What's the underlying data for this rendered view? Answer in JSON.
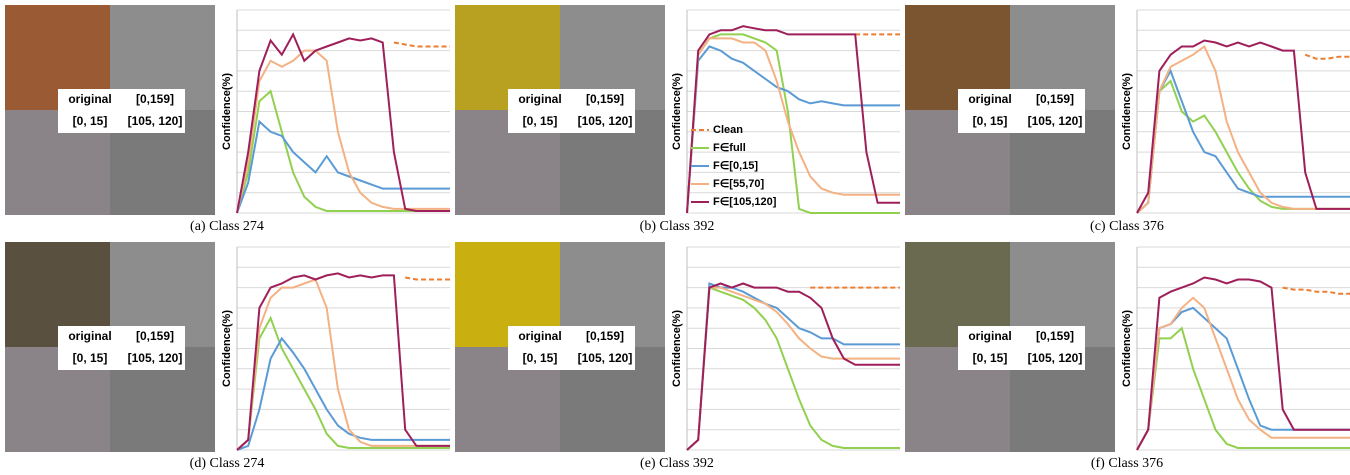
{
  "chart_data": [
    {
      "type": "line",
      "caption": "(a) Class 274",
      "image_labels": [
        "original",
        "[0,159]",
        "[0, 15]",
        "[105, 120]"
      ],
      "y_label": "Confidence(%)",
      "x": [
        0,
        1,
        2,
        3,
        4,
        5,
        6,
        7,
        8,
        9,
        10,
        11,
        12,
        13,
        14,
        15,
        16,
        17,
        18,
        19
      ],
      "xlim": [
        0,
        19
      ],
      "ylim": [
        0,
        100
      ],
      "yticks": [
        0,
        10,
        20,
        30,
        40,
        50,
        60,
        70,
        80,
        90,
        100
      ],
      "grid": true,
      "legend": false,
      "series": [
        {
          "color": "#ED7D31",
          "dashed": true,
          "values": [
            null,
            null,
            null,
            null,
            null,
            null,
            null,
            null,
            null,
            null,
            null,
            null,
            null,
            null,
            84,
            83,
            82,
            82,
            82,
            82
          ]
        },
        {
          "color": "#92D050",
          "values": [
            0,
            20,
            55,
            60,
            40,
            20,
            8,
            3,
            1,
            1,
            1,
            1,
            1,
            1,
            1,
            1,
            1,
            1,
            1,
            1
          ]
        },
        {
          "color": "#5B9BD5",
          "values": [
            0,
            15,
            45,
            40,
            38,
            30,
            25,
            20,
            28,
            20,
            18,
            16,
            14,
            12,
            12,
            12,
            12,
            12,
            12,
            12
          ]
        },
        {
          "color": "#F4B183",
          "values": [
            0,
            25,
            65,
            75,
            72,
            75,
            80,
            80,
            75,
            40,
            20,
            10,
            5,
            3,
            2,
            2,
            2,
            2,
            2,
            2
          ]
        },
        {
          "color": "#9E1F5A",
          "values": [
            0,
            30,
            70,
            85,
            78,
            88,
            75,
            80,
            82,
            84,
            86,
            85,
            86,
            84,
            30,
            2,
            1,
            1,
            1,
            1
          ]
        }
      ]
    },
    {
      "type": "line",
      "caption": "(b) Class 392",
      "image_labels": [
        "original",
        "[0,159]",
        "[0, 15]",
        "[105, 120]"
      ],
      "y_label": "Confidence(%)",
      "x": [
        0,
        1,
        2,
        3,
        4,
        5,
        6,
        7,
        8,
        9,
        10,
        11,
        12,
        13,
        14,
        15,
        16,
        17,
        18,
        19
      ],
      "xlim": [
        0,
        19
      ],
      "ylim": [
        0,
        100
      ],
      "yticks": [
        0,
        10,
        20,
        30,
        40,
        50,
        60,
        70,
        80,
        90,
        100
      ],
      "grid": true,
      "legend": true,
      "series": [
        {
          "name": "Clean",
          "color": "#ED7D31",
          "dashed": true,
          "values": [
            null,
            null,
            null,
            null,
            null,
            null,
            null,
            null,
            null,
            null,
            null,
            null,
            null,
            null,
            null,
            88,
            88,
            88,
            88,
            88
          ]
        },
        {
          "name": "F∈full",
          "color": "#92D050",
          "values": [
            0,
            78,
            86,
            88,
            88,
            88,
            86,
            84,
            80,
            50,
            2,
            0,
            0,
            0,
            0,
            0,
            0,
            0,
            0,
            0
          ]
        },
        {
          "name": "F∈[0,15]",
          "color": "#5B9BD5",
          "values": [
            0,
            75,
            82,
            80,
            76,
            74,
            70,
            66,
            62,
            60,
            56,
            54,
            55,
            54,
            53,
            53,
            53,
            53,
            53,
            53
          ]
        },
        {
          "name": "F∈[55,70]",
          "color": "#F4B183",
          "values": [
            0,
            78,
            86,
            86,
            86,
            84,
            84,
            80,
            65,
            45,
            30,
            18,
            12,
            10,
            9,
            9,
            9,
            9,
            9,
            9
          ]
        },
        {
          "name": "F∈[105,120]",
          "color": "#9E1F5A",
          "values": [
            0,
            80,
            88,
            90,
            90,
            92,
            91,
            90,
            90,
            88,
            88,
            88,
            88,
            88,
            88,
            88,
            30,
            5,
            5,
            5
          ]
        }
      ]
    },
    {
      "type": "line",
      "caption": "(c) Class 376",
      "image_labels": [
        "original",
        "[0,159]",
        "[0, 15]",
        "[105, 120]"
      ],
      "y_label": "Confidence(%)",
      "x": [
        0,
        1,
        2,
        3,
        4,
        5,
        6,
        7,
        8,
        9,
        10,
        11,
        12,
        13,
        14,
        15,
        16,
        17,
        18,
        19
      ],
      "xlim": [
        0,
        19
      ],
      "ylim": [
        0,
        100
      ],
      "yticks": [
        0,
        10,
        20,
        30,
        40,
        50,
        60,
        70,
        80,
        90,
        100
      ],
      "grid": true,
      "legend": false,
      "series": [
        {
          "color": "#ED7D31",
          "dashed": true,
          "values": [
            null,
            null,
            null,
            null,
            null,
            null,
            null,
            null,
            null,
            null,
            null,
            null,
            null,
            null,
            null,
            78,
            76,
            76,
            77,
            77
          ]
        },
        {
          "color": "#92D050",
          "values": [
            0,
            5,
            60,
            65,
            50,
            45,
            48,
            40,
            30,
            20,
            12,
            6,
            3,
            2,
            2,
            2,
            2,
            2,
            2,
            2
          ]
        },
        {
          "color": "#5B9BD5",
          "values": [
            0,
            5,
            60,
            70,
            55,
            40,
            30,
            28,
            20,
            12,
            10,
            8,
            8,
            8,
            8,
            8,
            8,
            8,
            8,
            8
          ]
        },
        {
          "color": "#F4B183",
          "values": [
            0,
            5,
            60,
            72,
            75,
            78,
            82,
            70,
            45,
            30,
            20,
            10,
            5,
            3,
            2,
            2,
            2,
            2,
            2,
            2
          ]
        },
        {
          "color": "#9E1F5A",
          "values": [
            0,
            10,
            70,
            78,
            82,
            82,
            85,
            84,
            82,
            84,
            82,
            84,
            82,
            80,
            80,
            20,
            2,
            2,
            2,
            2
          ]
        }
      ]
    },
    {
      "type": "line",
      "caption": "(d) Class 274",
      "image_labels": [
        "original",
        "[0,159]",
        "[0, 15]",
        "[105, 120]"
      ],
      "y_label": "Confidence(%)",
      "x": [
        0,
        1,
        2,
        3,
        4,
        5,
        6,
        7,
        8,
        9,
        10,
        11,
        12,
        13,
        14,
        15,
        16,
        17,
        18,
        19
      ],
      "xlim": [
        0,
        19
      ],
      "ylim": [
        0,
        100
      ],
      "yticks": [
        0,
        10,
        20,
        30,
        40,
        50,
        60,
        70,
        80,
        90,
        100
      ],
      "grid": true,
      "legend": false,
      "series": [
        {
          "color": "#ED7D31",
          "dashed": true,
          "values": [
            null,
            null,
            null,
            null,
            null,
            null,
            null,
            null,
            null,
            null,
            null,
            null,
            null,
            null,
            null,
            85,
            84,
            84,
            84,
            84
          ]
        },
        {
          "color": "#92D050",
          "values": [
            0,
            5,
            55,
            65,
            50,
            40,
            30,
            20,
            8,
            2,
            1,
            1,
            1,
            1,
            1,
            1,
            1,
            1,
            1,
            1
          ]
        },
        {
          "color": "#5B9BD5",
          "values": [
            0,
            2,
            20,
            45,
            55,
            48,
            40,
            30,
            20,
            12,
            8,
            6,
            5,
            5,
            5,
            5,
            5,
            5,
            5,
            5
          ]
        },
        {
          "color": "#F4B183",
          "values": [
            0,
            5,
            60,
            75,
            80,
            80,
            82,
            84,
            70,
            30,
            10,
            4,
            2,
            2,
            2,
            2,
            2,
            2,
            2,
            2
          ]
        },
        {
          "color": "#9E1F5A",
          "values": [
            0,
            5,
            70,
            80,
            82,
            85,
            86,
            84,
            86,
            87,
            85,
            86,
            85,
            86,
            86,
            10,
            2,
            2,
            2,
            2
          ]
        }
      ]
    },
    {
      "type": "line",
      "caption": "(e) Class 392",
      "image_labels": [
        "original",
        "[0,159]",
        "[0, 15]",
        "[105, 120]"
      ],
      "y_label": "Confidence(%)",
      "x": [
        0,
        1,
        2,
        3,
        4,
        5,
        6,
        7,
        8,
        9,
        10,
        11,
        12,
        13,
        14,
        15,
        16,
        17,
        18,
        19
      ],
      "xlim": [
        0,
        19
      ],
      "ylim": [
        0,
        100
      ],
      "yticks": [
        0,
        10,
        20,
        30,
        40,
        50,
        60,
        70,
        80,
        90,
        100
      ],
      "grid": true,
      "legend": false,
      "series": [
        {
          "color": "#ED7D31",
          "dashed": true,
          "values": [
            null,
            null,
            null,
            null,
            null,
            null,
            null,
            null,
            null,
            null,
            null,
            80,
            80,
            80,
            80,
            80,
            80,
            80,
            80,
            80
          ]
        },
        {
          "color": "#92D050",
          "values": [
            0,
            5,
            80,
            78,
            76,
            74,
            70,
            64,
            55,
            40,
            25,
            12,
            5,
            2,
            1,
            1,
            1,
            1,
            1,
            1
          ]
        },
        {
          "color": "#5B9BD5",
          "values": [
            0,
            5,
            82,
            80,
            80,
            78,
            75,
            72,
            70,
            65,
            60,
            58,
            55,
            55,
            52,
            52,
            52,
            52,
            52,
            52
          ]
        },
        {
          "color": "#F4B183",
          "values": [
            0,
            5,
            80,
            80,
            78,
            76,
            74,
            72,
            68,
            62,
            55,
            50,
            46,
            45,
            45,
            45,
            45,
            45,
            45,
            45
          ]
        },
        {
          "color": "#9E1F5A",
          "values": [
            0,
            5,
            80,
            82,
            80,
            82,
            80,
            80,
            80,
            78,
            78,
            75,
            70,
            55,
            45,
            42,
            42,
            42,
            42,
            42
          ]
        }
      ]
    },
    {
      "type": "line",
      "caption": "(f) Class 376",
      "image_labels": [
        "original",
        "[0,159]",
        "[0, 15]",
        "[105, 120]"
      ],
      "y_label": "Confidence(%)",
      "x": [
        0,
        1,
        2,
        3,
        4,
        5,
        6,
        7,
        8,
        9,
        10,
        11,
        12,
        13,
        14,
        15,
        16,
        17,
        18,
        19
      ],
      "xlim": [
        0,
        19
      ],
      "ylim": [
        0,
        100
      ],
      "yticks": [
        0,
        10,
        20,
        30,
        40,
        50,
        60,
        70,
        80,
        90,
        100
      ],
      "grid": true,
      "legend": false,
      "series": [
        {
          "color": "#ED7D31",
          "dashed": true,
          "values": [
            null,
            null,
            null,
            null,
            null,
            null,
            null,
            null,
            null,
            null,
            null,
            null,
            null,
            80,
            79,
            79,
            78,
            78,
            77,
            77
          ]
        },
        {
          "color": "#92D050",
          "values": [
            0,
            10,
            55,
            55,
            60,
            40,
            25,
            10,
            3,
            1,
            1,
            1,
            1,
            1,
            1,
            1,
            1,
            1,
            1,
            1
          ]
        },
        {
          "color": "#5B9BD5",
          "values": [
            0,
            10,
            60,
            62,
            68,
            70,
            65,
            60,
            55,
            40,
            25,
            12,
            10,
            10,
            10,
            10,
            10,
            10,
            10,
            10
          ]
        },
        {
          "color": "#F4B183",
          "values": [
            0,
            10,
            60,
            62,
            70,
            75,
            70,
            55,
            40,
            25,
            15,
            10,
            6,
            6,
            6,
            6,
            6,
            6,
            6,
            6
          ]
        },
        {
          "color": "#9E1F5A",
          "values": [
            0,
            10,
            75,
            78,
            80,
            82,
            85,
            84,
            82,
            84,
            84,
            83,
            80,
            20,
            10,
            10,
            10,
            10,
            10,
            10
          ]
        }
      ]
    }
  ]
}
